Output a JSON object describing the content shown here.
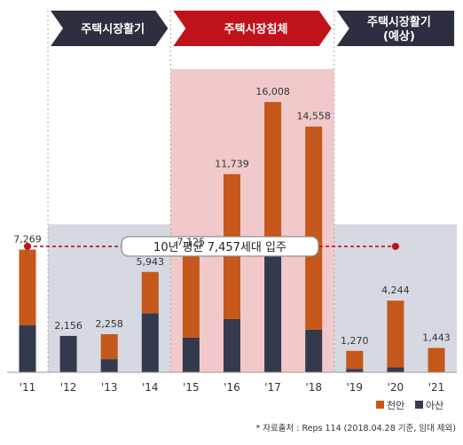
{
  "phases": [
    {
      "label": "주택시장활기",
      "sublabel": "",
      "color": "#2b2f3f",
      "shade": "#d6d9e1",
      "from": "'12",
      "to": "'14"
    },
    {
      "label": "주택시장침체",
      "sublabel": "",
      "color": "#c0121a",
      "shade": "#f2c9cb",
      "from": "'15",
      "to": "'18"
    },
    {
      "label": "주택시장활기",
      "sublabel": "(예상)",
      "color": "#2b2f3f",
      "shade": "#d6d9e1",
      "from": "'19",
      "to": "'21"
    }
  ],
  "average": {
    "value": 7457,
    "label": "10년 평균 7,457세대 입주",
    "color": "#c0121a"
  },
  "legend": {
    "items": [
      "천안",
      "아산"
    ]
  },
  "source": "* 자료출처 : Reps 114 (2018.04.28 기준, 임대 제외)",
  "chart_data": {
    "type": "bar",
    "stacked": true,
    "categories": [
      "'11",
      "'12",
      "'13",
      "'14",
      "'15",
      "'16",
      "'17",
      "'18",
      "'19",
      "'20",
      "'21"
    ],
    "series": [
      {
        "name": "아산",
        "color": "#343a4d",
        "values": [
          2800,
          2156,
          780,
          3500,
          2050,
          3150,
          6950,
          2530,
          200,
          300,
          0
        ]
      },
      {
        "name": "천안",
        "color": "#c5581a",
        "values": [
          4469,
          0,
          1478,
          2443,
          5075,
          8589,
          9058,
          12028,
          1070,
          3944,
          1443
        ]
      }
    ],
    "totals": [
      "7,269",
      "2,156",
      "2,258",
      "5,943",
      "7,125",
      "11,739",
      "16,008",
      "14,558",
      "1,270",
      "4,244",
      "1,443"
    ],
    "ylim": [
      0,
      16800
    ]
  }
}
